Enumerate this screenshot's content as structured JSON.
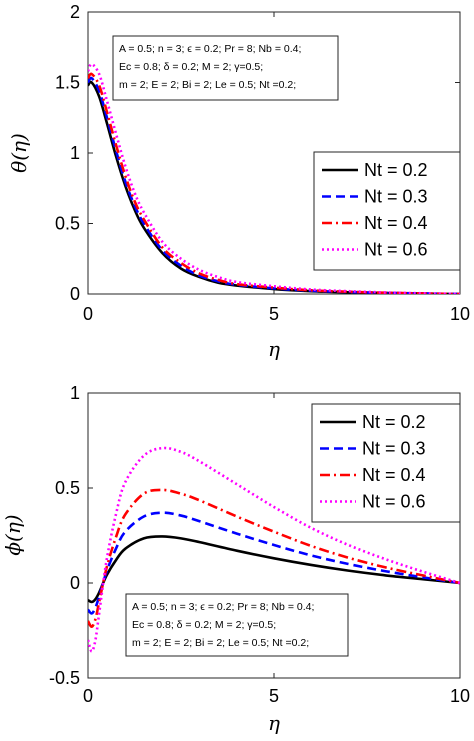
{
  "chart_data": [
    {
      "type": "line",
      "panel": "top",
      "xlabel": "η",
      "ylabel": "θ(η)",
      "xlim": [
        0,
        10
      ],
      "ylim": [
        0,
        2
      ],
      "xticks": [
        0,
        5,
        10
      ],
      "xtick_labels": [
        "0",
        "5",
        "10"
      ],
      "yticks": [
        0,
        0.5,
        1,
        1.5,
        2
      ],
      "ytick_labels": [
        "0",
        "0.5",
        "1",
        "1.5",
        "2"
      ],
      "legend_position": "right",
      "annotation_position": "top-left",
      "annotation_lines": [
        "A = 0.5; n = 3; ϵ = 0.2; Pr = 8; Nb = 0.4;",
        "Ec = 0.8; δ = 0.2; M = 2; γ=0.5;",
        "m = 2; E = 2; Bi = 2; Le = 0.5; Nt =0.2;"
      ],
      "series": [
        {
          "name": "Nt = 0.2",
          "color": "#000000",
          "style": "solid",
          "x": [
            0,
            0.1,
            0.3,
            0.5,
            0.75,
            1,
            1.25,
            1.5,
            2,
            2.5,
            3,
            3.5,
            4,
            5,
            6,
            7,
            8,
            9,
            10
          ],
          "y": [
            1.48,
            1.5,
            1.4,
            1.22,
            0.98,
            0.77,
            0.6,
            0.47,
            0.29,
            0.18,
            0.12,
            0.08,
            0.06,
            0.035,
            0.02,
            0.012,
            0.007,
            0.003,
            0
          ]
        },
        {
          "name": "Nt = 0.3",
          "color": "#0000ff",
          "style": "dashed",
          "x": [
            0,
            0.1,
            0.3,
            0.5,
            0.75,
            1,
            1.25,
            1.5,
            2,
            2.5,
            3,
            3.5,
            4,
            5,
            6,
            7,
            8,
            9,
            10
          ],
          "y": [
            1.5,
            1.53,
            1.44,
            1.26,
            1.02,
            0.8,
            0.63,
            0.5,
            0.31,
            0.2,
            0.13,
            0.09,
            0.065,
            0.04,
            0.023,
            0.014,
            0.008,
            0.004,
            0
          ]
        },
        {
          "name": "Nt = 0.4",
          "color": "#ff0000",
          "style": "dashdot",
          "x": [
            0,
            0.1,
            0.3,
            0.5,
            0.75,
            1,
            1.25,
            1.5,
            2,
            2.5,
            3,
            3.5,
            4,
            5,
            6,
            7,
            8,
            9,
            10
          ],
          "y": [
            1.53,
            1.56,
            1.48,
            1.3,
            1.06,
            0.84,
            0.66,
            0.53,
            0.33,
            0.22,
            0.145,
            0.1,
            0.07,
            0.045,
            0.026,
            0.016,
            0.009,
            0.004,
            0
          ]
        },
        {
          "name": "Nt = 0.6",
          "color": "#ff00ff",
          "style": "dotted",
          "x": [
            0,
            0.1,
            0.3,
            0.5,
            0.75,
            1,
            1.25,
            1.5,
            2,
            2.5,
            3,
            3.5,
            4,
            5,
            6,
            7,
            8,
            9,
            10
          ],
          "y": [
            1.58,
            1.63,
            1.56,
            1.38,
            1.14,
            0.91,
            0.72,
            0.58,
            0.37,
            0.25,
            0.17,
            0.12,
            0.085,
            0.055,
            0.032,
            0.02,
            0.011,
            0.005,
            0
          ]
        }
      ]
    },
    {
      "type": "line",
      "panel": "bottom",
      "xlabel": "η",
      "ylabel": "ϕ(η)",
      "xlim": [
        0,
        10
      ],
      "ylim": [
        -0.5,
        1
      ],
      "xticks": [
        0,
        5,
        10
      ],
      "xtick_labels": [
        "0",
        "5",
        "10"
      ],
      "yticks": [
        -0.5,
        0,
        0.5,
        1
      ],
      "ytick_labels": [
        "-0.5",
        "0",
        "0.5",
        "1"
      ],
      "legend_position": "top-right",
      "annotation_position": "bottom-left",
      "annotation_lines": [
        "A = 0.5; n = 3; ϵ = 0.2; Pr = 8; Nb = 0.4;",
        "Ec = 0.8; δ = 0.2; M = 2; γ=0.5;",
        "m = 2; E = 2; Bi = 2; Le = 0.5; Nt =0.2;"
      ],
      "series": [
        {
          "name": "Nt = 0.2",
          "color": "#000000",
          "style": "solid",
          "x": [
            0,
            0.1,
            0.2,
            0.3,
            0.5,
            0.75,
            1,
            1.5,
            2,
            2.5,
            3,
            4,
            5,
            6,
            7,
            8,
            9,
            10
          ],
          "y": [
            -0.09,
            -0.1,
            -0.085,
            -0.05,
            0.04,
            0.12,
            0.18,
            0.235,
            0.245,
            0.235,
            0.215,
            0.17,
            0.13,
            0.095,
            0.065,
            0.04,
            0.02,
            0
          ]
        },
        {
          "name": "Nt = 0.3",
          "color": "#0000ff",
          "style": "dashed",
          "x": [
            0,
            0.1,
            0.2,
            0.3,
            0.5,
            0.75,
            1,
            1.5,
            2,
            2.5,
            3,
            4,
            5,
            6,
            7,
            8,
            9,
            10
          ],
          "y": [
            -0.14,
            -0.16,
            -0.13,
            -0.07,
            0.06,
            0.18,
            0.27,
            0.35,
            0.37,
            0.355,
            0.325,
            0.26,
            0.2,
            0.145,
            0.1,
            0.062,
            0.03,
            0
          ]
        },
        {
          "name": "Nt = 0.4",
          "color": "#ff0000",
          "style": "dashdot",
          "x": [
            0,
            0.1,
            0.2,
            0.3,
            0.5,
            0.75,
            1,
            1.5,
            2,
            2.5,
            3,
            4,
            5,
            6,
            7,
            8,
            9,
            10
          ],
          "y": [
            -0.2,
            -0.23,
            -0.19,
            -0.1,
            0.08,
            0.24,
            0.36,
            0.47,
            0.49,
            0.47,
            0.435,
            0.35,
            0.27,
            0.195,
            0.133,
            0.082,
            0.04,
            0
          ]
        },
        {
          "name": "Nt = 0.6",
          "color": "#ff00ff",
          "style": "dotted",
          "x": [
            0,
            0.1,
            0.2,
            0.3,
            0.5,
            0.75,
            1,
            1.5,
            2,
            2.5,
            3,
            4,
            5,
            6,
            7,
            8,
            9,
            10
          ],
          "y": [
            -0.3,
            -0.36,
            -0.3,
            -0.16,
            0.12,
            0.36,
            0.53,
            0.67,
            0.71,
            0.69,
            0.64,
            0.52,
            0.4,
            0.29,
            0.2,
            0.125,
            0.06,
            0
          ]
        }
      ]
    }
  ]
}
